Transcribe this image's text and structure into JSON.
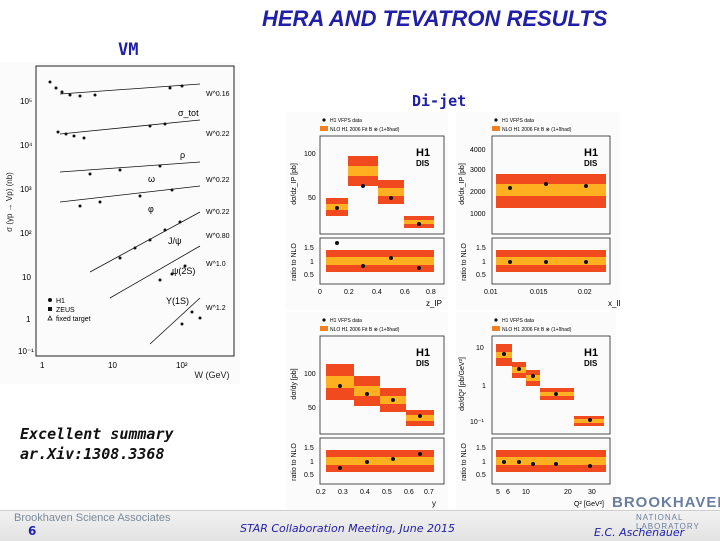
{
  "slide": {
    "title": "HERA AND TEVATRON RESULTS",
    "vm_label": "VM",
    "dijet_label": "Di-jet",
    "summary_line1": "Excellent summary",
    "summary_line2": "ar.Xiv:1308.3368"
  },
  "footer": {
    "organization": "Brookhaven Science Associates",
    "page_number": "6",
    "meeting": "STAR Collaboration Meeting, June 2015",
    "author": "E.C. Aschenauer",
    "logo_text": "BROOKHAVEN",
    "logo_subtext": "NATIONAL LABORATORY"
  },
  "vm_figure": {
    "y_axis_label": "σ (γp → Vp) (nb)",
    "x_axis_label": "W (GeV)",
    "y_ticks": [
      "10⁵",
      "10⁴",
      "10³",
      "10²",
      "10",
      "1",
      "10⁻¹"
    ],
    "x_ticks": [
      "1",
      "10",
      "10²"
    ],
    "curve_labels": [
      "σ_tot",
      "ρ",
      "ω",
      "φ",
      "J/ψ",
      "ψ(2S)",
      "Υ(1S)"
    ],
    "power_labels": [
      "W^0.16",
      "W^0.22",
      "W^0.22",
      "W^0.22",
      "W^0.80",
      "W^1.0",
      "W^1.2"
    ],
    "legend": [
      "H1",
      "ZEUS",
      "fixed target"
    ]
  },
  "dijet_panels": {
    "legend_line1": "H1 VFPS data",
    "legend_line2": "NLO H1 2006 Fit B ⊗ (1+δhad)",
    "badge_top": "H1",
    "badge_bottom": "DIS",
    "ratio_label": "ratio to NLO",
    "ratio_ticks": [
      "1.5",
      "1",
      "0.5"
    ],
    "panels": [
      {
        "ylabel": "dσ/dz_IP [pb]",
        "xlabel": "z_IP",
        "y_ticks": [
          "100",
          "50"
        ],
        "x_ticks": [
          "0",
          "0.2",
          "0.4",
          "0.6",
          "0.8"
        ]
      },
      {
        "ylabel": "dσ/dx_IP [pb]",
        "xlabel": "x_IP",
        "y_ticks": [
          "4000",
          "3000",
          "2000",
          "1000"
        ],
        "x_ticks": [
          "0.01",
          "0.015",
          "0.02"
        ]
      },
      {
        "ylabel": "dσ/dy [pb]",
        "xlabel": "y",
        "y_ticks": [
          "100",
          "50"
        ],
        "x_ticks": [
          "0.2",
          "0.3",
          "0.4",
          "0.5",
          "0.6",
          "0.7"
        ]
      },
      {
        "ylabel": "dσ/dQ² [pb/GeV²]",
        "xlabel": "Q² [GeV²]",
        "y_ticks": [
          "10",
          "1",
          "10⁻¹"
        ],
        "x_ticks": [
          "5",
          "6",
          "10",
          "20",
          "30"
        ]
      }
    ]
  }
}
